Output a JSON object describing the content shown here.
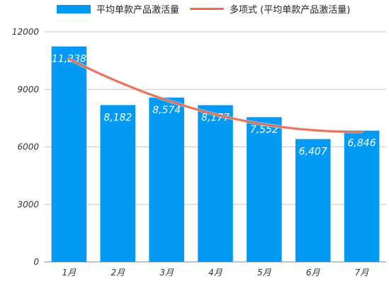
{
  "chart_data": {
    "type": "bar",
    "categories": [
      "1月",
      "2月",
      "3月",
      "4月",
      "5月",
      "6月",
      "7月"
    ],
    "series": [
      {
        "name": "平均单款产品激活量",
        "values": [
          11238,
          8182,
          8574,
          8177,
          7552,
          6407,
          6846
        ],
        "data_labels": [
          "11,238",
          "8,182",
          "8,574",
          "8,177",
          "7,552",
          "6,407",
          "6,846"
        ],
        "color": "#039AF5"
      }
    ],
    "trendline": {
      "name": "多项式 (平均单款产品激活量)",
      "type": "polynomial",
      "color": "#F06A4A"
    },
    "ylim": [
      0,
      12000
    ],
    "yticks": [
      0,
      3000,
      6000,
      9000,
      12000
    ],
    "grid": true,
    "legend_position": "top"
  }
}
